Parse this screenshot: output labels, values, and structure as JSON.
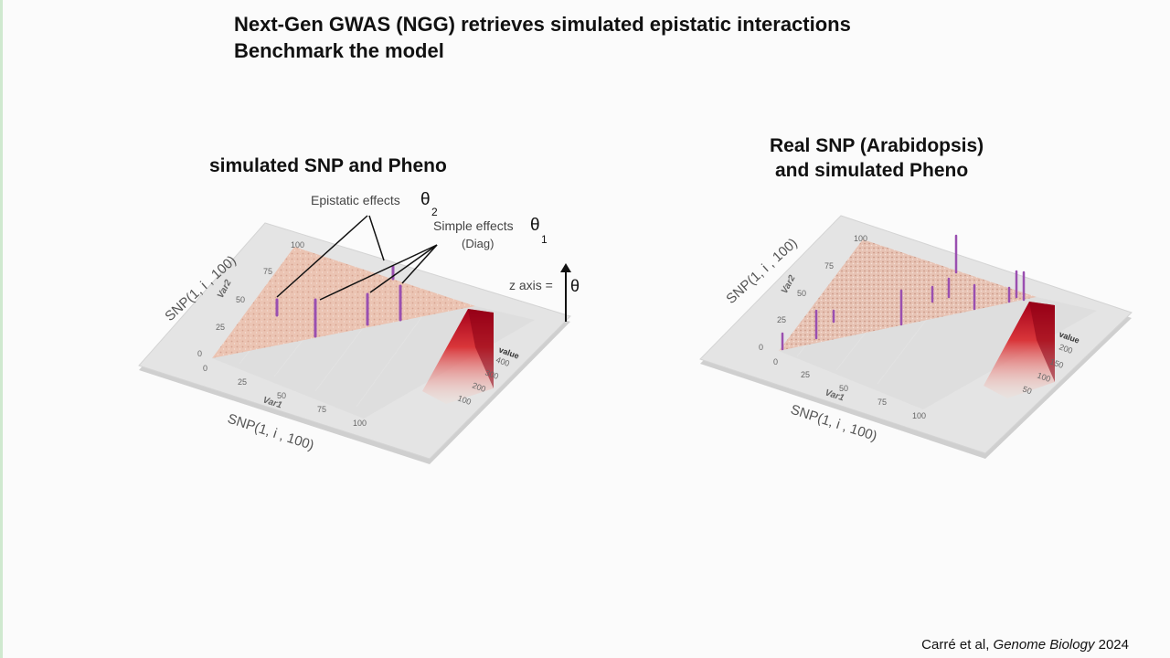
{
  "slide": {
    "title_line1": "Next-Gen GWAS (NGG) retrieves simulated epistatic interactions",
    "title_line2": "Benchmark the model",
    "citation_author": "Carré et al,",
    "citation_journal": "Genome Biology",
    "citation_year": "2024"
  },
  "left_panel": {
    "heading": "simulated SNP and Pheno",
    "annot_epistatic": "Epistatic effects",
    "annot_theta2": "θ",
    "annot_theta2_sub": "2",
    "annot_simple": "Simple effects",
    "annot_diag": "(Diag)",
    "annot_theta1": "θ",
    "annot_theta1_sub": "1",
    "z_axis_label": "z axis =",
    "z_axis_symbol": "θ",
    "y_axis_label": "SNP(1, i , 100)",
    "x_axis_label": "SNP(1, i , 100)",
    "y_title": "Var2",
    "x_title": "Var1",
    "ticks": [
      "0",
      "25",
      "50",
      "75",
      "100"
    ],
    "legend_title": "value",
    "legend_ticks": [
      "100",
      "200",
      "300",
      "400"
    ]
  },
  "right_panel": {
    "heading_line1": "Real SNP (Arabidopsis)",
    "heading_line2": "and simulated Pheno",
    "y_axis_label": "SNP(1, i , 100)",
    "x_axis_label": "SNP(1, i , 100)",
    "y_title": "Var2",
    "x_title": "Var1",
    "ticks": [
      "0",
      "25",
      "50",
      "75",
      "100"
    ],
    "legend_title": "value",
    "legend_ticks": [
      "50",
      "100",
      "150",
      "200"
    ]
  },
  "colors": {
    "triangle_fill": "#e9b9a5",
    "spike": "#9a4fb0",
    "legend_dark": "#b3001b",
    "legend_light": "#f7d3c6"
  }
}
